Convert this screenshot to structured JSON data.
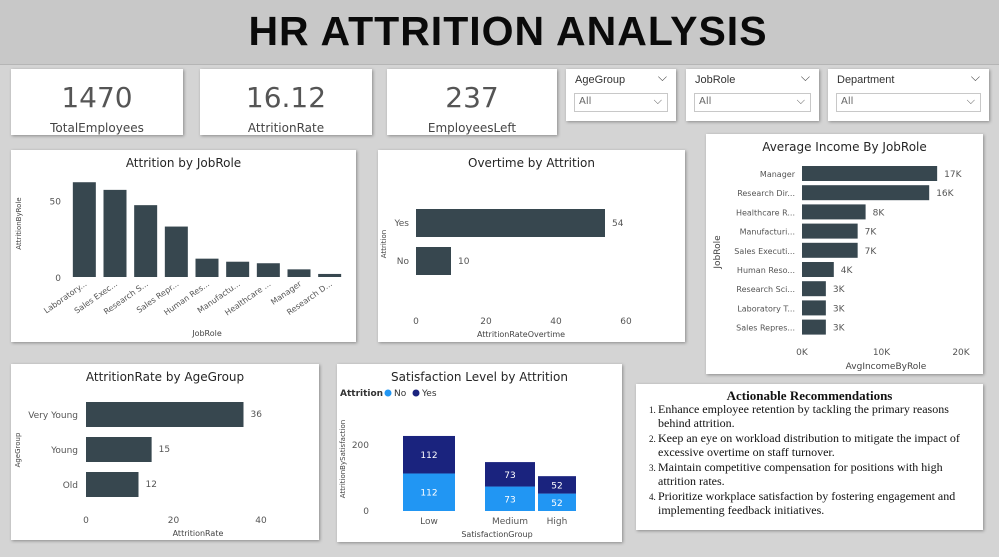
{
  "header": {
    "title": "HR ATTRITION ANALYSIS"
  },
  "kpis": [
    {
      "value": "1470",
      "label": "TotalEmployees"
    },
    {
      "value": "16.12",
      "label": "AttritionRate"
    },
    {
      "value": "237",
      "label": "EmployeesLeft"
    }
  ],
  "slicers": [
    {
      "label": "AgeGroup",
      "value": "All"
    },
    {
      "label": "JobRole",
      "value": "All"
    },
    {
      "label": "Department",
      "value": "All"
    }
  ],
  "recommendations": {
    "title": "Actionable Recommendations",
    "items": [
      "Enhance employee retention by tackling the primary reasons behind attrition.",
      "Keep an eye on workload distribution to mitigate the impact of excessive overtime on staff turnover.",
      "Maintain competitive compensation for positions with high attrition rates.",
      "Prioritize workplace satisfaction by fostering engagement and implementing feedback initiatives."
    ]
  },
  "colors": {
    "bar": "#37474f",
    "no": "#2196f3",
    "yes": "#1a237e"
  },
  "chart_data": [
    {
      "id": "attrition-by-jobrole",
      "type": "bar",
      "title": "Attrition by JobRole",
      "xlabel": "JobRole",
      "ylabel": "AttritionByRole",
      "ylim": [
        0,
        70
      ],
      "yticks": [
        "0",
        "50"
      ],
      "categories": [
        "Laboratory...",
        "Sales Exec...",
        "Research S...",
        "Sales Repr...",
        "Human Res...",
        "Manufactu...",
        "Healthcare ...",
        "Manager",
        "Research D..."
      ],
      "values": [
        62,
        57,
        47,
        33,
        12,
        10,
        9,
        5,
        2
      ]
    },
    {
      "id": "overtime-by-attrition",
      "type": "bar",
      "title": "Overtime by Attrition",
      "xlabel": "AttritionRateOvertime",
      "ylabel": "Attrition",
      "xlim": [
        0,
        60
      ],
      "xticks": [
        "0",
        "20",
        "40",
        "60"
      ],
      "categories": [
        "Yes",
        "No"
      ],
      "values": [
        54,
        10
      ],
      "data_labels": [
        "54",
        "10"
      ]
    },
    {
      "id": "avg-income-by-jobrole",
      "type": "bar",
      "title": "Average Income By JobRole",
      "xlabel": "AvgIncomeByRole",
      "ylabel": "JobRole",
      "xlim": [
        0,
        20000
      ],
      "xticks": [
        "0K",
        "10K",
        "20K"
      ],
      "categories": [
        "Manager",
        "Research Dir...",
        "Healthcare R...",
        "Manufacturi...",
        "Sales Executi...",
        "Human Reso...",
        "Research Sci...",
        "Laboratory T...",
        "Sales Repres..."
      ],
      "values": [
        17000,
        16000,
        8000,
        7000,
        7000,
        4000,
        3000,
        3000,
        3000
      ],
      "data_labels": [
        "17K",
        "16K",
        "8K",
        "7K",
        "7K",
        "4K",
        "3K",
        "3K",
        "3K"
      ]
    },
    {
      "id": "attritionrate-by-agegroup",
      "type": "bar",
      "title": "AttritionRate by AgeGroup",
      "xlabel": "AttritionRate",
      "ylabel": "AgeGroup",
      "xlim": [
        0,
        40
      ],
      "xticks": [
        "0",
        "20",
        "40"
      ],
      "categories": [
        "Very Young",
        "Young",
        "Old"
      ],
      "values": [
        36,
        15,
        12
      ],
      "data_labels": [
        "36",
        "15",
        "12"
      ]
    },
    {
      "id": "satisfaction-by-attrition",
      "type": "bar",
      "title": "Satisfaction Level by Attrition",
      "xlabel": "SatisfactionGroup",
      "ylabel": "AttritionBySatisfaction",
      "ylim": [
        0,
        250
      ],
      "yticks": [
        "0",
        "200"
      ],
      "legend_title": "Attrition",
      "categories": [
        "Low",
        "Medium",
        "High"
      ],
      "series": [
        {
          "name": "No",
          "values": [
            112,
            73,
            52
          ],
          "data_labels": [
            "112",
            "73",
            "52"
          ]
        },
        {
          "name": "Yes",
          "values": [
            112,
            73,
            52
          ],
          "data_labels": [
            "112",
            "73",
            "52"
          ]
        }
      ]
    }
  ]
}
